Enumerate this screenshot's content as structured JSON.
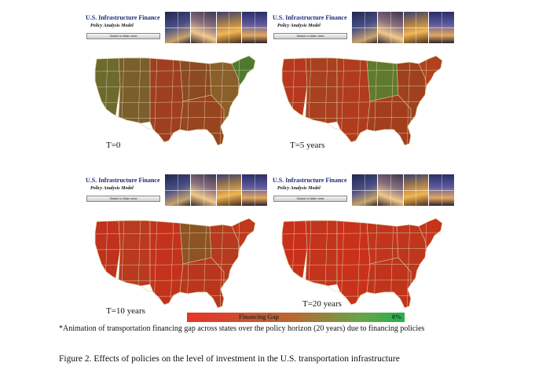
{
  "panels": [
    {
      "app_title": "U.S. Infrastructure Finance",
      "app_subtitle": "Policy Analysis Model",
      "switch_label": "Switch to Main view",
      "time_label": "T=0",
      "regions": {
        "west": "#6c6a2c",
        "mountain": "#7a5e2c",
        "central": "#9f3f1f",
        "midwest": "#8c4a22",
        "south": "#97451f",
        "east": "#8a5f2a",
        "northeast": "#4d7a2f"
      }
    },
    {
      "app_title": "U.S. Infrastructure Finance",
      "app_subtitle": "Policy Analysis Model",
      "switch_label": "Switch to Main view",
      "time_label": "T=5 years",
      "regions": {
        "west": "#b7381f",
        "mountain": "#a9401f",
        "central": "#b13b1d",
        "midwest": "#5f7a2c",
        "south": "#a33e1d",
        "east": "#9f401f",
        "northeast": "#b2421e"
      }
    },
    {
      "app_title": "U.S. Infrastructure Finance",
      "app_subtitle": "Policy Analysis Model",
      "switch_label": "Switch to Main view",
      "time_label": "T=10 years",
      "regions": {
        "west": "#c0321d",
        "mountain": "#b93a1f",
        "central": "#c4321c",
        "midwest": "#8c5323",
        "south": "#b9361d",
        "east": "#b73a1e",
        "northeast": "#c0381d"
      }
    },
    {
      "app_title": "U.S. Infrastructure Finance",
      "app_subtitle": "Policy Analysis Model",
      "switch_label": "Switch to Main view",
      "time_label": "T=20 years",
      "regions": {
        "west": "#c9301b",
        "mountain": "#c3341d",
        "central": "#c9311b",
        "midwest": "#c2351c",
        "south": "#c0341c",
        "east": "#bf361d",
        "northeast": "#c7331b"
      }
    }
  ],
  "legend": {
    "label": "Financing Gap",
    "end_label": "0%",
    "colors": {
      "high": "#e5342a",
      "low": "#26b04a"
    }
  },
  "footnote": "*Animation of transportation financing gap across states over the policy horizon (20 years) due to financing policies",
  "figure_caption": "Figure 2. Effects of policies on the level of investment in the U.S. transportation infrastructure"
}
